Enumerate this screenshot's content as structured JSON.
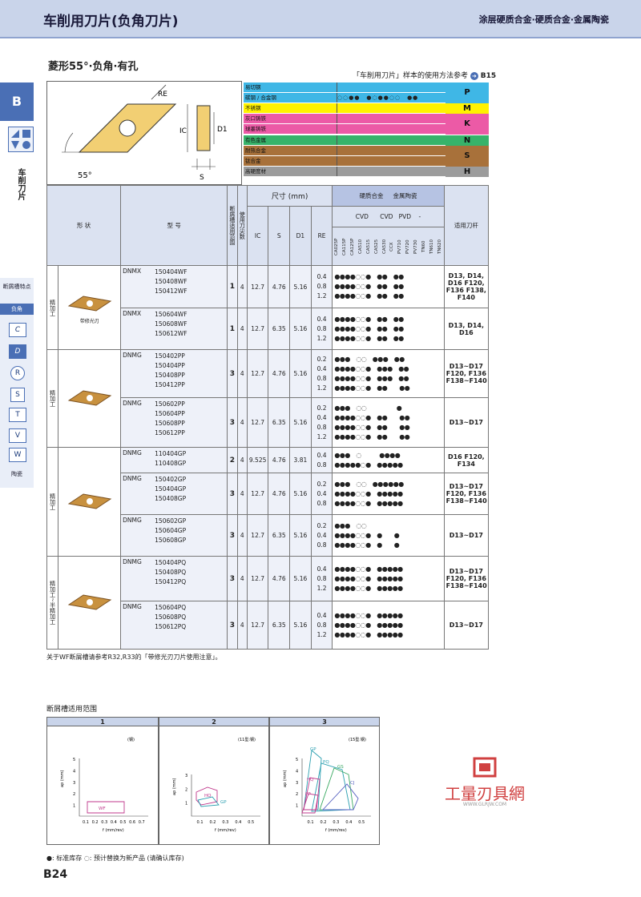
{
  "header": {
    "title": "车削用刀片(负角刀片)",
    "subtitle": "涂层硬质合金·硬质合金·金属陶瓷"
  },
  "side": {
    "tab": "B",
    "vertical_label": "车削刀片",
    "items": [
      "断屑槽特点",
      "负角",
      "C",
      "D",
      "R",
      "S",
      "T",
      "V",
      "W",
      "陶瓷"
    ]
  },
  "section": {
    "title": "菱形55°·负角·有孔",
    "ref_text": "「车削用刀片」样本的使用方法参考",
    "ref_page": "B15"
  },
  "diagram": {
    "labels": {
      "re": "RE",
      "ic": "IC",
      "d1": "D1",
      "s": "S",
      "angle": "55°"
    }
  },
  "materials": [
    {
      "name": "易切钢",
      "color": "#3fb7e6"
    },
    {
      "name": "碳钢 / 合金钢",
      "color": "#3fb7e6",
      "marks": "◌◌●●　●◌●●◌◌　●●"
    },
    {
      "name": "不锈钢",
      "color": "#fff200"
    },
    {
      "name": "灰口铸铁",
      "color": "#ec5aa6"
    },
    {
      "name": "球墨铸铁",
      "color": "#ec5aa6"
    },
    {
      "name": "有色金属",
      "color": "#37b36a"
    },
    {
      "name": "耐热合金",
      "color": "#a8713a"
    },
    {
      "name": "钛合金",
      "color": "#a8713a"
    },
    {
      "name": "高硬度材",
      "color": "#9c9c9c"
    }
  ],
  "material_codes": [
    "P",
    "M",
    "K",
    "N",
    "S",
    "H"
  ],
  "table_headers": {
    "shape": "形 状",
    "model": "型 号",
    "chip_range": "断屑槽适用范围",
    "edges": "使用刀尖数",
    "dims": "尺寸 (mm)",
    "ic": "IC",
    "s": "S",
    "d1": "D1",
    "re": "RE",
    "carbide": "硬质合金",
    "cermet": "金属陶瓷",
    "cvd": "CVD",
    "pvd": "PVD",
    "dash": "-",
    "cvd2": "CVD",
    "holder": "适用刀杆",
    "grades": [
      "CA025P",
      "CA115P",
      "CA125P",
      "CA510",
      "CA515",
      "CA525",
      "CA530",
      "CCX",
      "PV710",
      "PV720",
      "PV730",
      "TN60",
      "TN610",
      "TN620"
    ]
  },
  "groups": [
    {
      "process": "精加工",
      "note": "带修光刃",
      "rows": [
        {
          "series": "DNMX",
          "models": [
            "150404WF",
            "150408WF",
            "150412WF"
          ],
          "range": "1",
          "edges": "4",
          "ic": "12.7",
          "s": "4.76",
          "d1": "5.16",
          "re": [
            "0.4",
            "0.8",
            "1.2"
          ],
          "dots": [
            "●●●●◌◌●　●●　●●",
            "●●●●◌◌●　●●　●●",
            "●●●●◌◌●　●●　●●"
          ],
          "holder": "D13, D14, D16 F120, F136 F138, F140"
        },
        {
          "series": "DNMX",
          "models": [
            "150604WF",
            "150608WF",
            "150612WF"
          ],
          "range": "1",
          "edges": "4",
          "ic": "12.7",
          "s": "6.35",
          "d1": "5.16",
          "re": [
            "0.4",
            "0.8",
            "1.2"
          ],
          "dots": [
            "●●●●◌◌●　●●　●●",
            "●●●●◌◌●　●●　●●",
            "●●●●◌◌●　●●　●●"
          ],
          "holder": "D13, D14, D16"
        }
      ]
    },
    {
      "process": "精加工",
      "rows": [
        {
          "series": "DNMG",
          "models": [
            "150402PP",
            "150404PP",
            "150408PP",
            "150412PP"
          ],
          "range": "3",
          "edges": "4",
          "ic": "12.7",
          "s": "4.76",
          "d1": "5.16",
          "re": [
            "0.2",
            "0.4",
            "0.8",
            "1.2"
          ],
          "dots": [
            "●●●　◌◌　●●●　●●",
            "●●●●◌◌●　●●●　●●",
            "●●●●◌◌●　●●●　●●",
            "●●●●◌◌●　●●　　●●"
          ],
          "holder": "D13~D17 F120, F136 F138~F140"
        },
        {
          "series": "DNMG",
          "models": [
            "150602PP",
            "150604PP",
            "150608PP",
            "150612PP"
          ],
          "range": "3",
          "edges": "4",
          "ic": "12.7",
          "s": "6.35",
          "d1": "5.16",
          "re": [
            "0.2",
            "0.4",
            "0.8",
            "1.2"
          ],
          "dots": [
            "●●●　◌◌　　　　　●",
            "●●●●◌◌●　●●　　●●",
            "●●●●◌◌●　●●　　●●",
            "●●●●◌◌●　●●　　●●"
          ],
          "holder": "D13~D17"
        }
      ]
    },
    {
      "process": "精加工",
      "rows": [
        {
          "series": "DNMG",
          "models": [
            "110404GP",
            "110408GP"
          ],
          "range": "2",
          "edges": "4",
          "ic": "9.525",
          "s": "4.76",
          "d1": "3.81",
          "re": [
            "0.4",
            "0.8"
          ],
          "dots": [
            "●●●　◌　　　●●●●",
            "●●●●●◌●　●●●●●"
          ],
          "holder": "D16 F120, F134"
        },
        {
          "series": "DNMG",
          "models": [
            "150402GP",
            "150404GP",
            "150408GP"
          ],
          "range": "3",
          "edges": "4",
          "ic": "12.7",
          "s": "4.76",
          "d1": "5.16",
          "re": [
            "0.2",
            "0.4",
            "0.8"
          ],
          "dots": [
            "●●●　◌◌　●●●●●●",
            "●●●●◌◌●　●●●●●",
            "●●●●◌◌●　●●●●●"
          ],
          "holder": "D13~D17 F120, F136 F138~F140"
        },
        {
          "series": "DNMG",
          "models": [
            "150602GP",
            "150604GP",
            "150608GP"
          ],
          "range": "3",
          "edges": "4",
          "ic": "12.7",
          "s": "6.35",
          "d1": "5.16",
          "re": [
            "0.2",
            "0.4",
            "0.8"
          ],
          "dots": [
            "●●●　◌◌　　　　　　",
            "●●●●◌◌●　●　　●",
            "●●●●◌◌●　●　　●"
          ],
          "holder": "D13~D17"
        }
      ]
    },
    {
      "process": "精加工~半精加工",
      "rows": [
        {
          "series": "DNMG",
          "models": [
            "150404PQ",
            "150408PQ",
            "150412PQ"
          ],
          "range": "3",
          "edges": "4",
          "ic": "12.7",
          "s": "4.76",
          "d1": "5.16",
          "re": [
            "0.4",
            "0.8",
            "1.2"
          ],
          "dots": [
            "●●●●◌◌●　●●●●●",
            "●●●●◌◌●　●●●●●",
            "●●●●◌◌●　●●●●●"
          ],
          "holder": "D13~D17 F120, F136 F138~F140"
        },
        {
          "series": "DNMG",
          "models": [
            "150604PQ",
            "150608PQ",
            "150612PQ"
          ],
          "range": "3",
          "edges": "4",
          "ic": "12.7",
          "s": "6.35",
          "d1": "5.16",
          "re": [
            "0.4",
            "0.8",
            "1.2"
          ],
          "dots": [
            "●●●●◌◌●　●●●●●",
            "●●●●◌◌●　●●●●●",
            "●●●●◌◌●　●●●●●"
          ],
          "holder": "D13~D17"
        }
      ]
    }
  ],
  "footnote": "关于WF断屑槽请参考R32,R33的「带修光刃刀片使用注意」。",
  "range_section": {
    "title": "断屑槽适用范围",
    "charts": [
      {
        "num": "1",
        "note": "(钢)",
        "ylabel": "ap (mm)",
        "xlabel": "f (mm/rev)",
        "yticks": [
          "1",
          "2",
          "3",
          "4",
          "5"
        ],
        "xticks": [
          "0.1",
          "0.2",
          "0.3",
          "0.4",
          "0.5",
          "0.6",
          "0.7"
        ],
        "labels": [
          "WF"
        ]
      },
      {
        "num": "2",
        "note": "(11型:钢)",
        "ylabel": "ap (mm)",
        "xlabel": "f (mm/rev)",
        "yticks": [
          "1",
          "2",
          "3"
        ],
        "xticks": [
          "0.1",
          "0.2",
          "0.3",
          "0.4",
          "0.5"
        ],
        "labels": [
          "HQ",
          "GP"
        ]
      },
      {
        "num": "3",
        "note": "(15型:钢)",
        "ylabel": "ap (mm)",
        "xlabel": "f (mm/rev)",
        "yticks": [
          "1",
          "2",
          "3",
          "4",
          "5"
        ],
        "xticks": [
          "0.1",
          "0.2",
          "0.3",
          "0.4",
          "0.5"
        ],
        "labels": [
          "GP",
          "PQ",
          "GS",
          "HQ",
          "PP",
          "CJ"
        ]
      }
    ]
  },
  "legend": "●: 标准库存  ◌: 预计替换为新产品 (请确认库存)",
  "page": "B24",
  "watermark": {
    "text": "工量刃具網",
    "url": "WWW.GLRJW.COM"
  }
}
